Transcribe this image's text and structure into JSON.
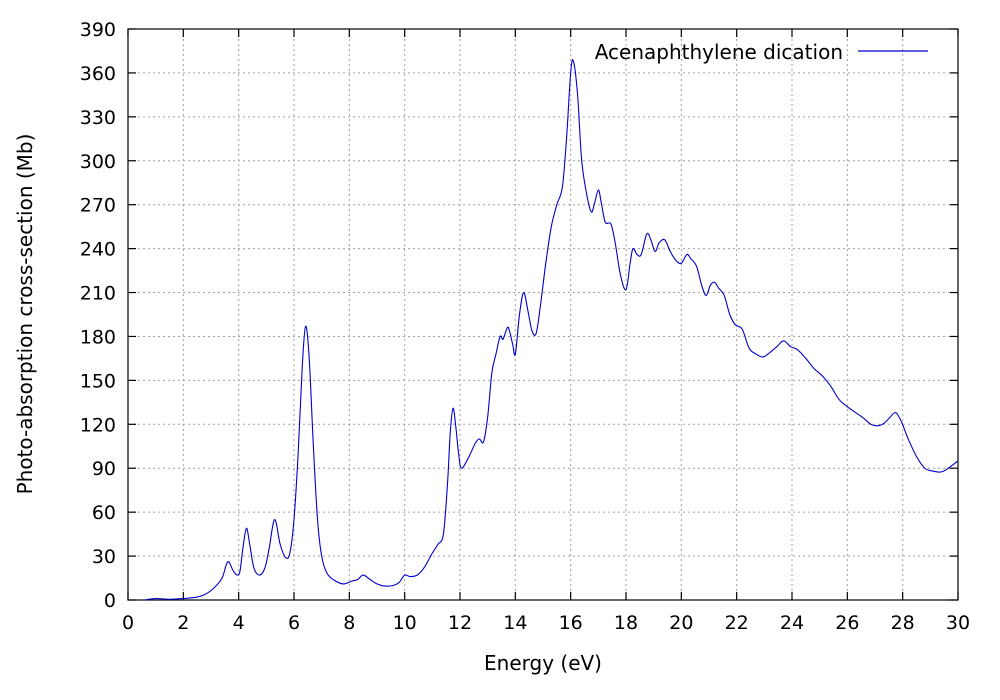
{
  "chart_data": {
    "type": "line",
    "title": "",
    "xlabel": "Energy (eV)",
    "ylabel": "Photo-absorption cross-section (Mb)",
    "xlim": [
      0,
      30
    ],
    "ylim": [
      0,
      390
    ],
    "x_ticks": [
      0,
      2,
      4,
      6,
      8,
      10,
      12,
      14,
      16,
      18,
      20,
      22,
      24,
      26,
      28,
      30
    ],
    "y_ticks": [
      0,
      30,
      60,
      90,
      120,
      150,
      180,
      210,
      240,
      270,
      300,
      330,
      360,
      390
    ],
    "grid": true,
    "legend_position": "top-right",
    "series": [
      {
        "name": "Acenaphthylene dication",
        "color": "#0000cc",
        "points": [
          [
            0.6,
            0
          ],
          [
            1.0,
            1
          ],
          [
            1.5,
            0.5
          ],
          [
            2.0,
            1
          ],
          [
            2.5,
            2
          ],
          [
            2.8,
            4
          ],
          [
            3.1,
            8
          ],
          [
            3.4,
            15
          ],
          [
            3.55,
            24
          ],
          [
            3.65,
            26
          ],
          [
            3.8,
            20
          ],
          [
            3.95,
            17
          ],
          [
            4.05,
            20
          ],
          [
            4.15,
            35
          ],
          [
            4.28,
            49
          ],
          [
            4.4,
            38
          ],
          [
            4.55,
            22
          ],
          [
            4.75,
            17
          ],
          [
            4.95,
            22
          ],
          [
            5.1,
            35
          ],
          [
            5.3,
            55
          ],
          [
            5.5,
            38
          ],
          [
            5.7,
            29
          ],
          [
            5.85,
            32
          ],
          [
            6.0,
            55
          ],
          [
            6.15,
            100
          ],
          [
            6.3,
            160
          ],
          [
            6.42,
            187
          ],
          [
            6.55,
            165
          ],
          [
            6.7,
            105
          ],
          [
            6.85,
            55
          ],
          [
            7.0,
            30
          ],
          [
            7.2,
            18
          ],
          [
            7.5,
            13
          ],
          [
            7.8,
            11
          ],
          [
            8.1,
            13
          ],
          [
            8.3,
            14
          ],
          [
            8.5,
            17
          ],
          [
            8.75,
            14
          ],
          [
            9.0,
            11
          ],
          [
            9.3,
            9.5
          ],
          [
            9.6,
            10
          ],
          [
            9.8,
            12
          ],
          [
            10.0,
            17
          ],
          [
            10.2,
            16
          ],
          [
            10.45,
            17
          ],
          [
            10.7,
            22
          ],
          [
            11.0,
            32
          ],
          [
            11.2,
            38
          ],
          [
            11.4,
            45
          ],
          [
            11.55,
            80
          ],
          [
            11.65,
            115
          ],
          [
            11.75,
            131
          ],
          [
            11.85,
            118
          ],
          [
            11.95,
            100
          ],
          [
            12.05,
            90
          ],
          [
            12.3,
            97
          ],
          [
            12.55,
            107
          ],
          [
            12.7,
            110
          ],
          [
            12.85,
            108
          ],
          [
            13.0,
            125
          ],
          [
            13.15,
            155
          ],
          [
            13.3,
            168
          ],
          [
            13.45,
            180
          ],
          [
            13.55,
            178
          ],
          [
            13.65,
            183
          ],
          [
            13.75,
            186
          ],
          [
            13.9,
            175
          ],
          [
            14.0,
            168
          ],
          [
            14.15,
            195
          ],
          [
            14.3,
            210
          ],
          [
            14.45,
            198
          ],
          [
            14.6,
            184
          ],
          [
            14.75,
            182
          ],
          [
            14.9,
            200
          ],
          [
            15.1,
            230
          ],
          [
            15.3,
            255
          ],
          [
            15.5,
            270
          ],
          [
            15.7,
            282
          ],
          [
            15.85,
            315
          ],
          [
            16.0,
            360
          ],
          [
            16.1,
            368
          ],
          [
            16.25,
            345
          ],
          [
            16.4,
            300
          ],
          [
            16.6,
            275
          ],
          [
            16.75,
            265
          ],
          [
            16.85,
            270
          ],
          [
            17.0,
            280
          ],
          [
            17.1,
            272
          ],
          [
            17.25,
            258
          ],
          [
            17.45,
            257
          ],
          [
            17.6,
            245
          ],
          [
            17.8,
            222
          ],
          [
            18.0,
            212
          ],
          [
            18.15,
            230
          ],
          [
            18.25,
            240
          ],
          [
            18.4,
            236
          ],
          [
            18.55,
            236
          ],
          [
            18.75,
            250
          ],
          [
            18.9,
            246
          ],
          [
            19.05,
            238
          ],
          [
            19.2,
            244
          ],
          [
            19.4,
            246
          ],
          [
            19.6,
            238
          ],
          [
            19.8,
            232
          ],
          [
            20.0,
            230
          ],
          [
            20.2,
            236
          ],
          [
            20.35,
            233
          ],
          [
            20.55,
            228
          ],
          [
            20.75,
            214
          ],
          [
            20.9,
            208
          ],
          [
            21.05,
            215
          ],
          [
            21.2,
            217
          ],
          [
            21.35,
            213
          ],
          [
            21.55,
            208
          ],
          [
            21.75,
            195
          ],
          [
            21.95,
            188
          ],
          [
            22.2,
            185
          ],
          [
            22.45,
            172
          ],
          [
            22.7,
            168
          ],
          [
            22.95,
            166
          ],
          [
            23.2,
            169
          ],
          [
            23.45,
            173
          ],
          [
            23.7,
            177
          ],
          [
            23.95,
            173
          ],
          [
            24.2,
            171
          ],
          [
            24.5,
            165
          ],
          [
            24.8,
            158
          ],
          [
            25.1,
            153
          ],
          [
            25.4,
            146
          ],
          [
            25.7,
            137
          ],
          [
            26.0,
            132
          ],
          [
            26.3,
            128
          ],
          [
            26.6,
            124
          ],
          [
            26.85,
            120
          ],
          [
            27.1,
            119
          ],
          [
            27.35,
            121
          ],
          [
            27.55,
            125
          ],
          [
            27.75,
            128
          ],
          [
            27.95,
            122
          ],
          [
            28.2,
            110
          ],
          [
            28.5,
            98
          ],
          [
            28.8,
            90
          ],
          [
            29.1,
            88
          ],
          [
            29.4,
            87.5
          ],
          [
            29.65,
            90
          ],
          [
            30.0,
            95
          ]
        ]
      }
    ]
  }
}
